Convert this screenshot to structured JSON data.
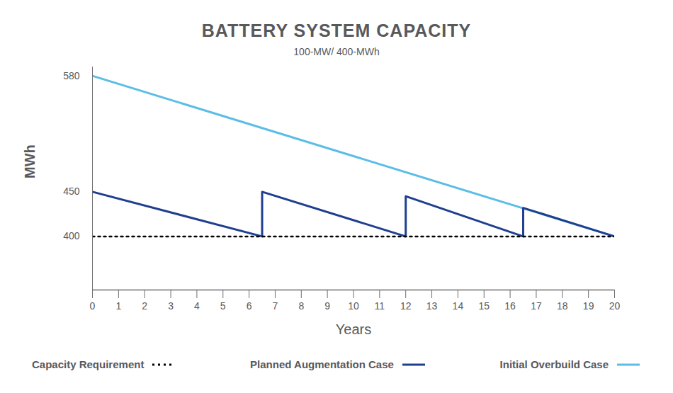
{
  "chart_data": {
    "type": "line",
    "title": "BATTERY SYSTEM CAPACITY",
    "subtitle": "100-MW/ 400-MWh",
    "xlabel": "Years",
    "ylabel": "MWh",
    "xlim": [
      0,
      20
    ],
    "xticks": [
      0,
      1,
      2,
      3,
      4,
      5,
      6,
      7,
      8,
      9,
      10,
      11,
      12,
      13,
      14,
      15,
      16,
      17,
      18,
      19,
      20
    ],
    "ylim": [
      340,
      590
    ],
    "yticks": [
      400,
      450,
      580
    ],
    "grid": false,
    "legend": "bottom",
    "series": [
      {
        "name": "Capacity Requirement",
        "color": "#000000",
        "line_style": "dotted",
        "x": [
          0,
          20
        ],
        "values": [
          400,
          400
        ]
      },
      {
        "name": "Planned Augmentation Case",
        "color": "#1f3f8f",
        "line_style": "solid",
        "x": [
          0,
          6.5,
          6.5,
          12,
          12,
          16.5,
          16.5,
          20
        ],
        "values": [
          450,
          400,
          450,
          400,
          445,
          400,
          432,
          400
        ]
      },
      {
        "name": "Initial Overbuild Case",
        "color": "#5bbde6",
        "line_style": "solid",
        "x": [
          0,
          20
        ],
        "values": [
          580,
          400
        ]
      }
    ]
  }
}
